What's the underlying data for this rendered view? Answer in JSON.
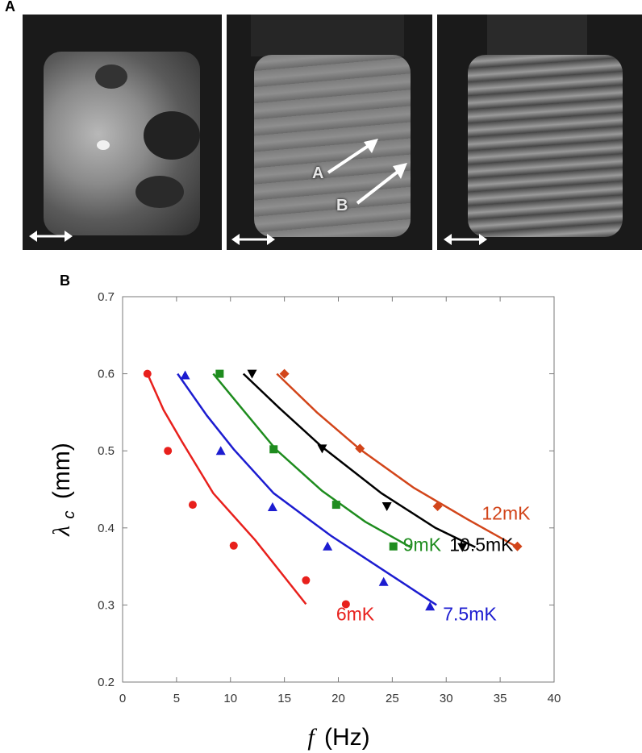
{
  "panel_a": {
    "letter": "A",
    "arrow_labels": [
      "A",
      "B"
    ]
  },
  "panel_b": {
    "letter": "B"
  },
  "chart_data": {
    "type": "scatter",
    "title": "",
    "xlabel_symbol": "f",
    "xlabel_unit": "(Hz)",
    "ylabel_symbol": "λ",
    "ylabel_sub": "c",
    "ylabel_unit": "(mm)",
    "xlim": [
      0,
      40
    ],
    "ylim": [
      0.2,
      0.7
    ],
    "x_ticks": [
      0,
      5,
      10,
      15,
      20,
      25,
      30,
      35,
      40
    ],
    "y_ticks": [
      0.2,
      0.3,
      0.4,
      0.5,
      0.6,
      0.7
    ],
    "series": [
      {
        "name": "6mK",
        "color": "#e8201c",
        "marker": "circle",
        "points": [
          [
            2.3,
            0.6
          ],
          [
            4.2,
            0.5
          ],
          [
            6.5,
            0.43
          ],
          [
            10.3,
            0.377
          ],
          [
            17.0,
            0.332
          ],
          [
            20.7,
            0.301
          ]
        ],
        "fit": [
          [
            2.3,
            0.6
          ],
          [
            3.8,
            0.553
          ],
          [
            5.5,
            0.512
          ],
          [
            8.4,
            0.445
          ],
          [
            12.3,
            0.384
          ],
          [
            17.0,
            0.301
          ]
        ]
      },
      {
        "name": "7.5mK",
        "color": "#1c1cd0",
        "marker": "triangle-up",
        "points": [
          [
            5.8,
            0.598
          ],
          [
            9.1,
            0.5
          ],
          [
            13.9,
            0.427
          ],
          [
            19.0,
            0.376
          ],
          [
            24.2,
            0.33
          ],
          [
            28.5,
            0.298
          ]
        ],
        "fit": [
          [
            5.1,
            0.6
          ],
          [
            7.8,
            0.546
          ],
          [
            10.3,
            0.502
          ],
          [
            14.0,
            0.445
          ],
          [
            19.3,
            0.39
          ],
          [
            24.2,
            0.345
          ],
          [
            29.1,
            0.3
          ]
        ]
      },
      {
        "name": "9mK",
        "color": "#1e8c1e",
        "marker": "square",
        "points": [
          [
            9.0,
            0.6
          ],
          [
            14.0,
            0.502
          ],
          [
            19.8,
            0.43
          ],
          [
            25.1,
            0.376
          ]
        ],
        "fit": [
          [
            8.4,
            0.6
          ],
          [
            11.0,
            0.556
          ],
          [
            14.2,
            0.502
          ],
          [
            18.5,
            0.448
          ],
          [
            22.5,
            0.408
          ],
          [
            26.7,
            0.375
          ]
        ]
      },
      {
        "name": "10.5mK",
        "color": "#000000",
        "marker": "triangle-down",
        "points": [
          [
            12.0,
            0.6
          ],
          [
            18.5,
            0.503
          ],
          [
            24.5,
            0.428
          ],
          [
            31.5,
            0.375
          ]
        ],
        "fit": [
          [
            11.2,
            0.6
          ],
          [
            14.5,
            0.556
          ],
          [
            18.5,
            0.505
          ],
          [
            24.0,
            0.445
          ],
          [
            29.0,
            0.4
          ],
          [
            32.7,
            0.375
          ]
        ]
      },
      {
        "name": "12mK",
        "color": "#d2451a",
        "marker": "diamond",
        "points": [
          [
            15.0,
            0.6
          ],
          [
            22.0,
            0.503
          ],
          [
            29.2,
            0.428
          ],
          [
            36.6,
            0.376
          ]
        ],
        "fit": [
          [
            14.3,
            0.6
          ],
          [
            18.0,
            0.55
          ],
          [
            22.0,
            0.502
          ],
          [
            27.0,
            0.452
          ],
          [
            32.0,
            0.411
          ],
          [
            36.6,
            0.375
          ]
        ]
      }
    ],
    "annotations": [
      {
        "text": "12mK",
        "color": "#d2451a",
        "at": [
          33.3,
          0.411
        ]
      },
      {
        "text": "10.5mK",
        "color": "#000000",
        "at": [
          30.3,
          0.37
        ]
      },
      {
        "text": "9mK",
        "color": "#1e8c1e",
        "at": [
          26.0,
          0.37
        ]
      },
      {
        "text": "7.5mK",
        "color": "#1c1cd0",
        "at": [
          29.7,
          0.28
        ]
      },
      {
        "text": "6mK",
        "color": "#e8201c",
        "at": [
          19.8,
          0.28
        ]
      }
    ]
  }
}
